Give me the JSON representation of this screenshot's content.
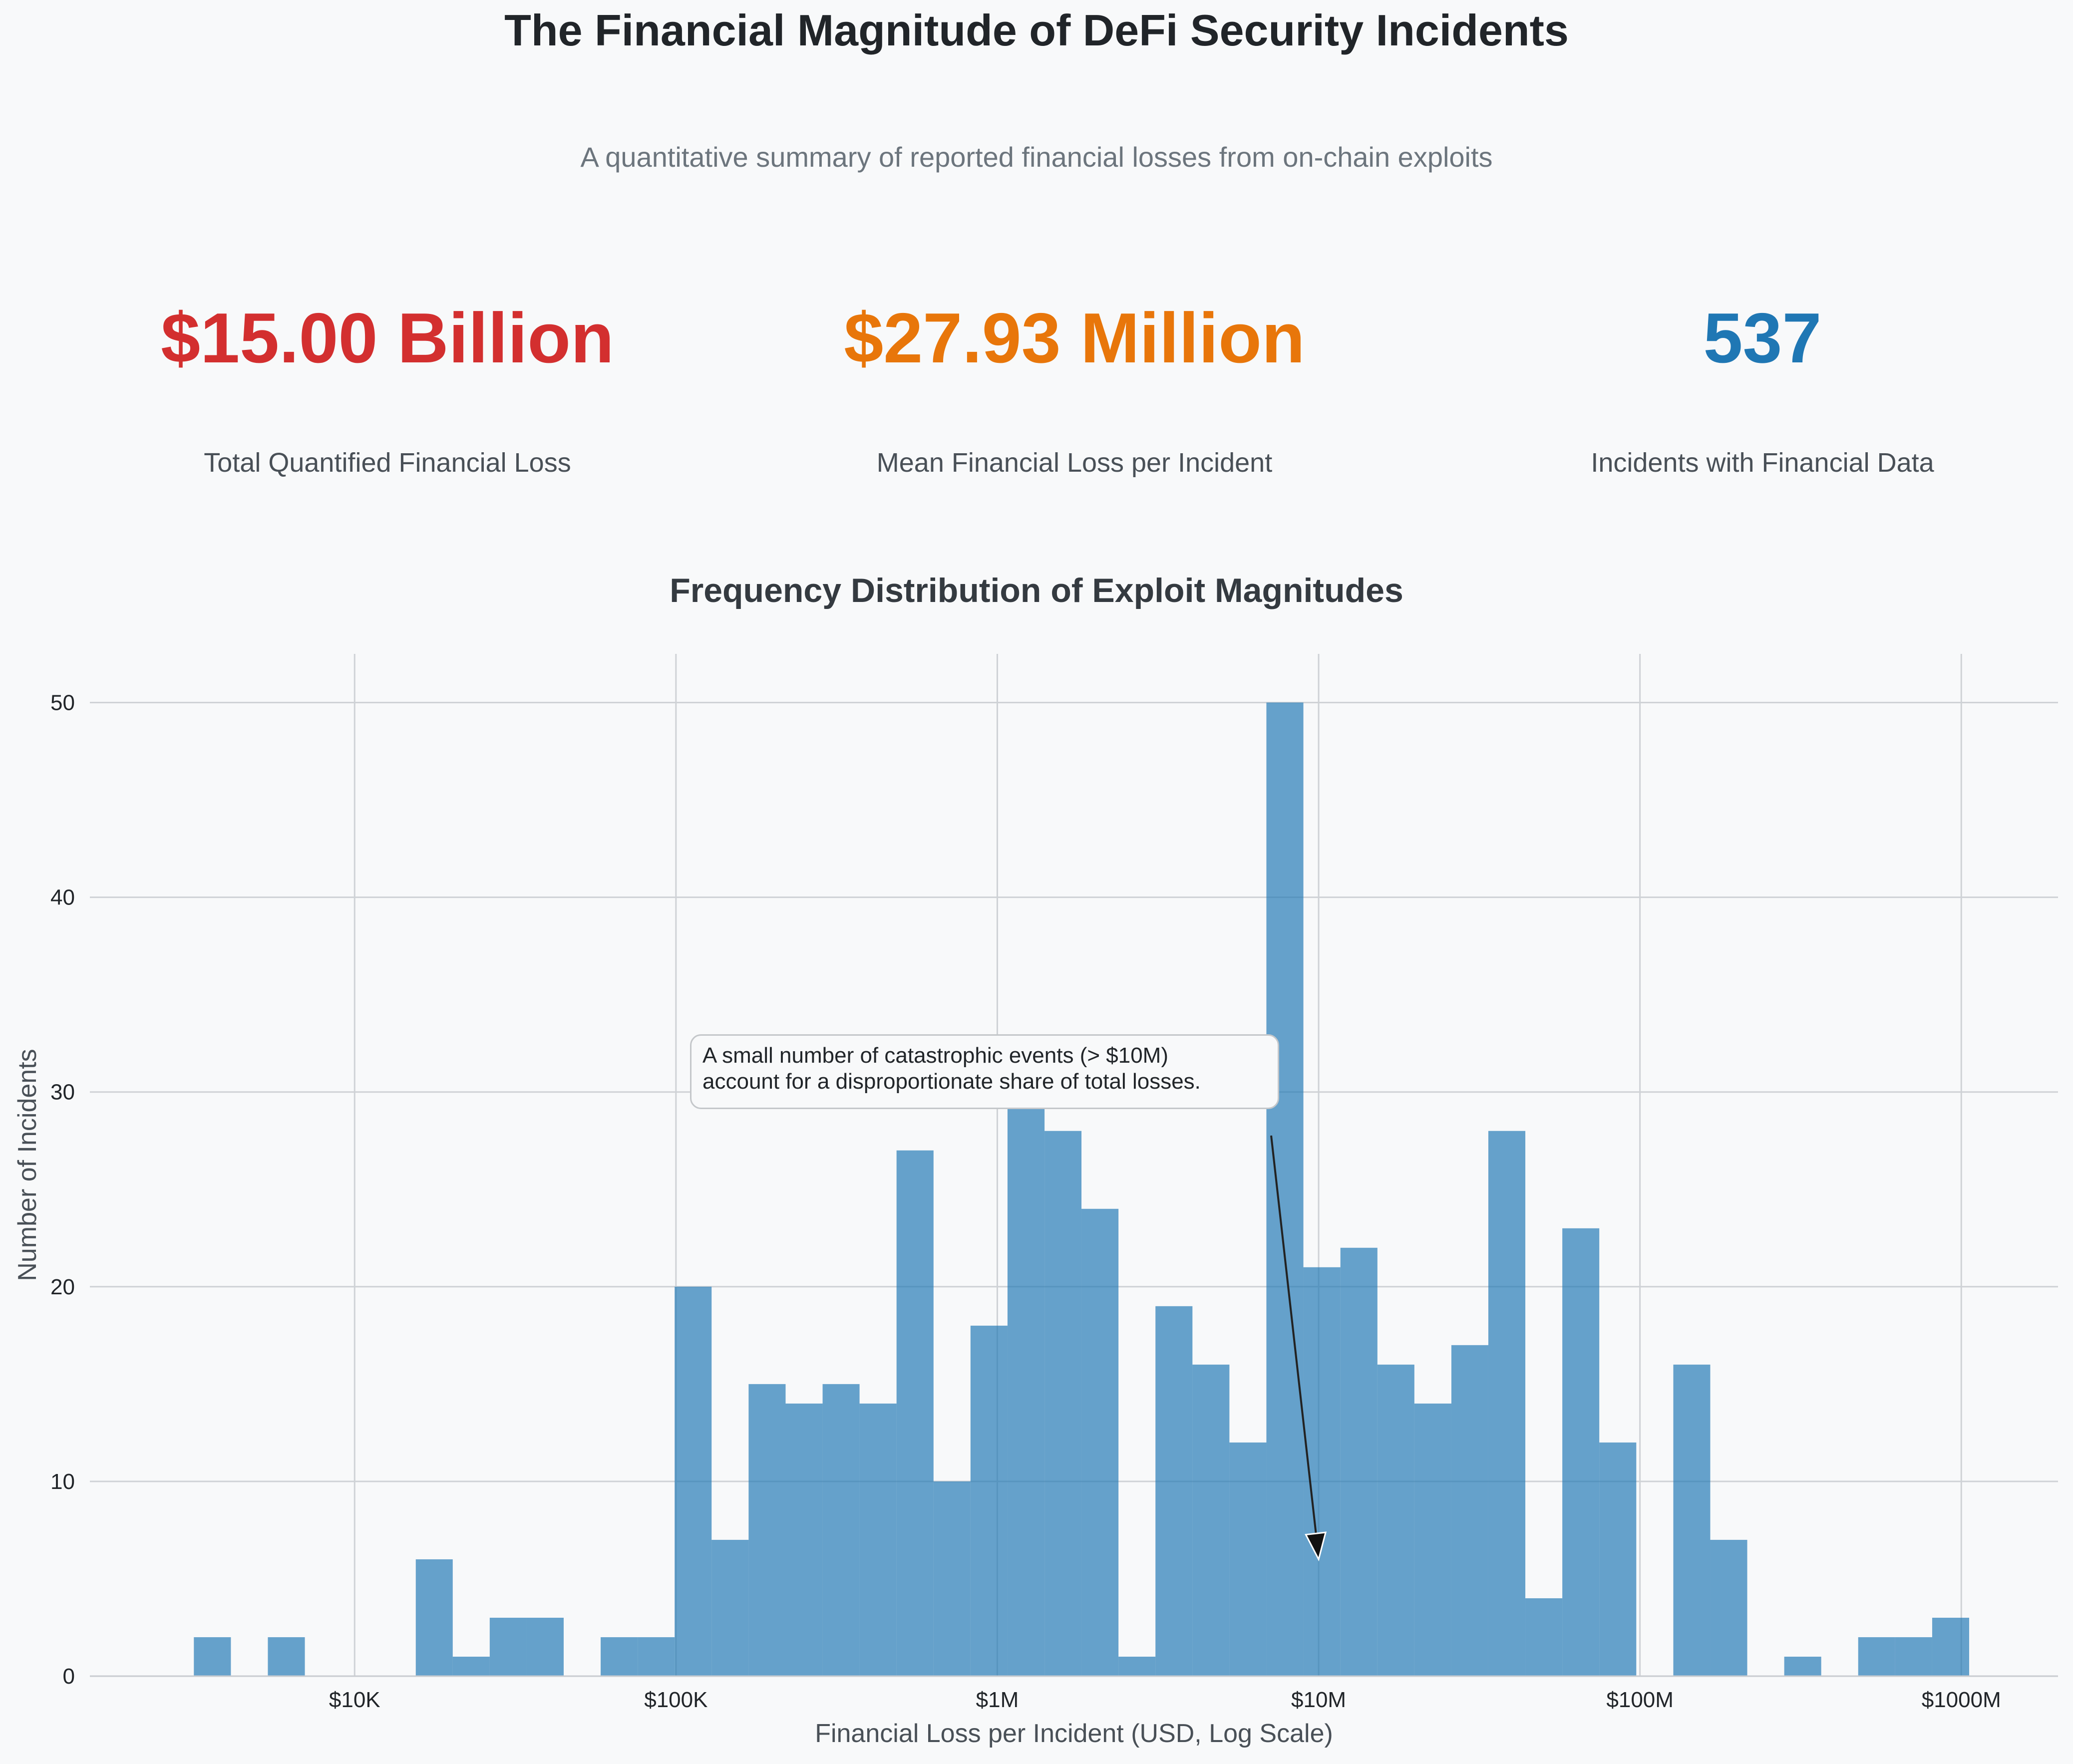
{
  "title": "The Financial Magnitude of DeFi Security Incidents",
  "subtitle": "A quantitative summary of reported financial losses from on-chain exploits",
  "kpis": [
    {
      "value": "$15.00 Billion",
      "label": "Total Quantified Financial Loss",
      "color": "#d32f2f"
    },
    {
      "value": "$27.93 Million",
      "label": "Mean Financial Loss per Incident",
      "color": "#e8760a"
    },
    {
      "value": "537",
      "label": "Incidents with Financial Data",
      "color": "#1f77b4"
    }
  ],
  "chart_data": {
    "type": "bar",
    "title": "Frequency Distribution of Exploit Magnitudes",
    "xlabel": "Financial Loss per Incident (USD, Log Scale)",
    "ylabel": "Number of Incidents",
    "x_scale": "log",
    "xlim": [
      1500,
      2000000000
    ],
    "ylim": [
      0,
      52.5
    ],
    "x_ticks": [
      {
        "value": 10000,
        "label": "$10K"
      },
      {
        "value": 100000,
        "label": "$100K"
      },
      {
        "value": 1000000,
        "label": "$1M"
      },
      {
        "value": 10000000,
        "label": "$10M"
      },
      {
        "value": 100000000,
        "label": "$100M"
      },
      {
        "value": 1000000000,
        "label": "$1000M"
      }
    ],
    "y_ticks": [
      0,
      10,
      20,
      30,
      40,
      50
    ],
    "grid": true,
    "bar_color": "#1f77b4",
    "bin_edges_usd": [
      3160,
      4120,
      5370,
      7000,
      9120,
      11890,
      15500,
      20200,
      26330,
      34320,
      44730,
      58300,
      76000,
      99060,
      129100,
      168300,
      219400,
      286000,
      372700,
      485800,
      633300,
      825400,
      1076000,
      1403000,
      1828000,
      2383000,
      3106000,
      4049000,
      5277000,
      6878000,
      8966000,
      11690000,
      15240000,
      19860000,
      25890000,
      33740000,
      43980000,
      57330000,
      74720000,
      97400000,
      127000000,
      165500000,
      215700000,
      281200000,
      366500000,
      477700000,
      622700000,
      811700000,
      1058000000
    ],
    "counts": [
      2,
      0,
      2,
      0,
      0,
      0,
      6,
      1,
      3,
      3,
      0,
      2,
      2,
      20,
      7,
      15,
      14,
      15,
      14,
      27,
      10,
      18,
      30,
      28,
      24,
      1,
      19,
      16,
      12,
      50,
      21,
      22,
      16,
      14,
      17,
      28,
      4,
      23,
      12,
      0,
      16,
      7,
      0,
      1,
      0,
      2,
      2,
      3
    ],
    "annotation": {
      "text_lines": [
        "A small number of catastrophic events (> $10M)",
        "account for a disproportionate share of total losses."
      ],
      "arrow_target": {
        "x": 10000000,
        "y": 6
      }
    }
  }
}
